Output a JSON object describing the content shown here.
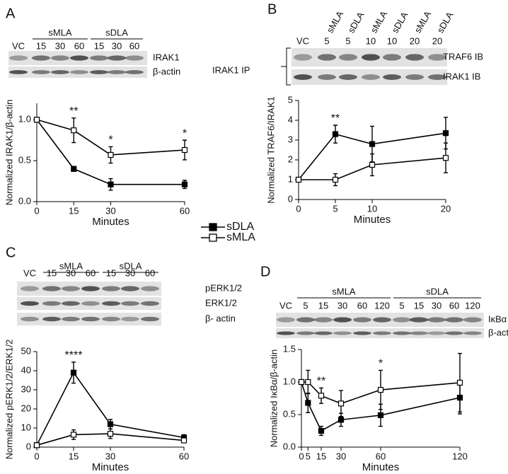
{
  "chart_data": [
    {
      "type": "line",
      "panel_label": "A",
      "blot": {
        "groups": [
          "sMLA",
          "sDLA"
        ],
        "lanes": [
          "VC",
          "15",
          "30",
          "60",
          "15",
          "30",
          "60"
        ],
        "rows": [
          "IRAK1",
          "β-actin"
        ]
      },
      "xlabel": "Minutes",
      "ylabel": "Normalized IRAK1/β-actin",
      "x": [
        0,
        15,
        30,
        60
      ],
      "xlim": [
        0,
        60
      ],
      "xticks": [
        0,
        15,
        30,
        60
      ],
      "ylim": [
        0,
        1.2
      ],
      "yticks": [
        {
          "value": 0,
          "label": "0.0"
        },
        0.5,
        {
          "value": 1,
          "label": "1.0"
        }
      ],
      "series": [
        {
          "name": "sDLA",
          "marker": "filled",
          "color": "#000000",
          "values": [
            1.0,
            0.4,
            0.21,
            0.21
          ],
          "error": [
            0,
            0.03,
            0.07,
            0.05
          ]
        },
        {
          "name": "sMLA",
          "marker": "open",
          "color": "#000000",
          "values": [
            1.0,
            0.87,
            0.57,
            0.63
          ],
          "error": [
            0,
            0.15,
            0.1,
            0.12
          ]
        }
      ],
      "annotations": [
        {
          "x": 15,
          "text": "**"
        },
        {
          "x": 30,
          "text": "*"
        },
        {
          "x": 60,
          "text": "*"
        }
      ]
    },
    {
      "type": "line",
      "panel_label": "B",
      "blot": {
        "headers": [
          null,
          "sMLA",
          "sDLA",
          "sMLA",
          "sDLA",
          "sMLA",
          "sDLA"
        ],
        "lanes": [
          "VC",
          "5",
          "5",
          "10",
          "10",
          "20",
          "20"
        ],
        "rows": [
          "TRAF6 IB",
          "IRAK1 IB"
        ],
        "side_label": "IRAK1 IP"
      },
      "xlabel": "Minutes",
      "ylabel": "Normalized TRAF6/IRAK1",
      "x": [
        0,
        5,
        10,
        20
      ],
      "xlim": [
        0,
        20
      ],
      "xticks": [
        0,
        5,
        10,
        20
      ],
      "ylim": [
        0,
        5
      ],
      "yticks": [
        0,
        1,
        2,
        3,
        4,
        5
      ],
      "series": [
        {
          "marker": "filled",
          "color": "#000000",
          "values": [
            1.0,
            3.3,
            2.8,
            3.35
          ],
          "error": [
            0,
            0.45,
            0.9,
            0.8
          ]
        },
        {
          "marker": "open",
          "color": "#000000",
          "values": [
            1.0,
            1.0,
            1.75,
            2.1
          ],
          "error": [
            0,
            0.3,
            0.55,
            0.75
          ]
        }
      ],
      "annotations": [
        {
          "x": 5,
          "text": "**"
        }
      ]
    },
    {
      "type": "line",
      "panel_label": "C",
      "blot": {
        "groups": [
          "sMLA",
          "sDLA"
        ],
        "lanes": [
          "VC",
          "15",
          "30",
          "60",
          "15",
          "30",
          "60"
        ],
        "rows": [
          "pERK1/2",
          "ERK1/2",
          "β- actin"
        ]
      },
      "xlabel": "Minutes",
      "ylabel": "Normalized pERK1/2/ERK1/2",
      "x": [
        0,
        15,
        30,
        60
      ],
      "xlim": [
        0,
        60
      ],
      "xticks": [
        0,
        15,
        30,
        60
      ],
      "ylim": [
        0,
        50
      ],
      "yticks": [
        0,
        10,
        20,
        30,
        40,
        50
      ],
      "series": [
        {
          "marker": "filled",
          "color": "#000000",
          "values": [
            1,
            39,
            12,
            5
          ],
          "error": [
            0,
            5.5,
            2.5,
            1.5
          ]
        },
        {
          "marker": "open",
          "color": "#000000",
          "values": [
            1,
            6.5,
            7,
            3.5
          ],
          "error": [
            0,
            2.5,
            2.5,
            1
          ]
        }
      ],
      "annotations": [
        {
          "x": 15,
          "text": "****"
        }
      ]
    },
    {
      "type": "line",
      "panel_label": "D",
      "blot": {
        "groups": [
          "sMLA",
          "sDLA"
        ],
        "lanes": [
          "VC",
          "5",
          "15",
          "30",
          "60",
          "120",
          "5",
          "15",
          "30",
          "60",
          "120"
        ],
        "rows": [
          "IκBα",
          "β-actin"
        ]
      },
      "xlabel": "Minutes",
      "ylabel": "Normalized IκBα/β-actin",
      "x": [
        0,
        5,
        15,
        30,
        60,
        120
      ],
      "xlim": [
        0,
        120
      ],
      "xticks": [
        0,
        5,
        15,
        30,
        60,
        120
      ],
      "ylim": [
        0,
        1.5
      ],
      "yticks": [
        {
          "value": 0,
          "label": "0.0"
        },
        0.5,
        {
          "value": 1,
          "label": "1.0"
        },
        1.5
      ],
      "series": [
        {
          "marker": "filled",
          "color": "#000000",
          "values": [
            1.0,
            0.68,
            0.25,
            0.42,
            0.49,
            0.76
          ],
          "error": [
            0,
            0.15,
            0.07,
            0.1,
            0.17,
            0.25
          ]
        },
        {
          "marker": "open",
          "color": "#000000",
          "values": [
            1.0,
            1.0,
            0.79,
            0.67,
            0.88,
            0.99
          ],
          "error": [
            0,
            0.18,
            0.12,
            0.2,
            0.3,
            0.45
          ]
        }
      ],
      "annotations": [
        {
          "x": 15,
          "text": "**"
        },
        {
          "x": 60,
          "text": "*"
        }
      ]
    }
  ]
}
